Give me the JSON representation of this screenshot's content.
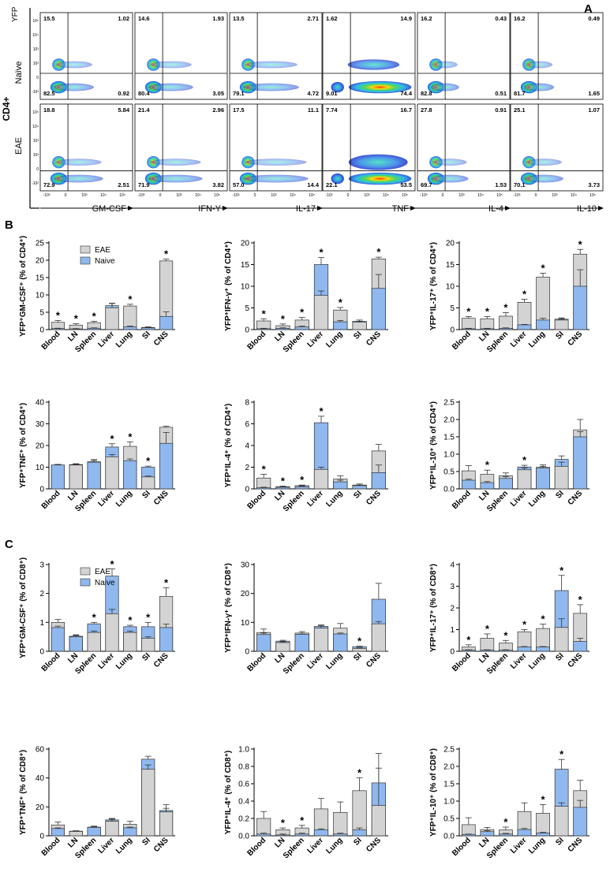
{
  "figure_labels": {
    "A": "A",
    "B": "B",
    "C": "C"
  },
  "panel_a": {
    "row_labels": {
      "cd4": "CD4+",
      "naive": "Naïve",
      "eae": "EAE",
      "yfp": "YFP"
    },
    "x_axes": [
      "GM-CSF",
      "IFN-Y",
      "IL-17",
      "TNF",
      "IL-4",
      "IL-10"
    ],
    "quadrants": {
      "naive": [
        [
          "15.5",
          "1.02",
          "82.5",
          "0.92"
        ],
        [
          "14.6",
          "1.93",
          "80.4",
          "3.05"
        ],
        [
          "13.5",
          "2.71",
          "79.1",
          "4.72"
        ],
        [
          "1.62",
          "14.9",
          "9.01",
          "74.4"
        ],
        [
          "16.2",
          "0.43",
          "82.8",
          "0.51"
        ],
        [
          "16.2",
          "0.49",
          "81.7",
          "1.65"
        ]
      ],
      "eae": [
        [
          "18.8",
          "5.84",
          "72.9",
          "2.51"
        ],
        [
          "21.4",
          "2.96",
          "71.9",
          "3.82"
        ],
        [
          "17.5",
          "11.1",
          "57.0",
          "14.4"
        ],
        [
          "7.74",
          "16.7",
          "22.1",
          "53.5"
        ],
        [
          "27.8",
          "0.91",
          "69.7",
          "1.53"
        ],
        [
          "25.1",
          "1.07",
          "70.1",
          "3.73"
        ]
      ]
    },
    "tick_labels": {
      "y": [
        "10⁵",
        "10⁴",
        "10³",
        "10²",
        "0",
        "-10²"
      ],
      "x": [
        "-10³",
        "0",
        "10³",
        "10⁴",
        "10⁵"
      ]
    }
  },
  "legend": {
    "eae": "EAE",
    "naive": "Naive"
  },
  "colors": {
    "eae": "#d3d3d3",
    "naive": "#8fb8ee",
    "axis": "#000000"
  },
  "chart_data": [
    {
      "type": "bar",
      "panel": "B",
      "ylabel": "YFP⁺GM-CSF⁺ (% of CD4⁺)",
      "ylim": [
        0,
        25
      ],
      "yticks": [
        "0",
        "5",
        "10",
        "15",
        "20",
        "25"
      ],
      "tick_values": [
        0,
        5,
        10,
        15,
        20,
        25
      ],
      "categories": [
        "Blood",
        "LN",
        "Spleen",
        "Liver",
        "Lung",
        "SI",
        "CNS"
      ],
      "series": [
        {
          "name": "EAE",
          "values": [
            2.1,
            1.3,
            2.0,
            6.3,
            6.8,
            0.6,
            19.8
          ],
          "errors": [
            0.5,
            0.4,
            0.4,
            1.2,
            0.5,
            0.2,
            0.5
          ]
        },
        {
          "name": "Naive",
          "values": [
            0.3,
            0.2,
            0.4,
            6.9,
            0.8,
            0.5,
            3.8
          ],
          "errors": [
            0.1,
            0.1,
            0.1,
            0.7,
            0.2,
            0.1,
            1.3
          ]
        }
      ],
      "significant": [
        1,
        1,
        1,
        0,
        1,
        0,
        1
      ]
    },
    {
      "type": "bar",
      "panel": "B",
      "ylabel": "YFP⁺IFN-γ⁺ (% of CD4⁺)",
      "ylim": [
        0,
        20
      ],
      "yticks": [
        "0",
        "5",
        "10",
        "15",
        "20"
      ],
      "tick_values": [
        0,
        5,
        10,
        15,
        20
      ],
      "categories": [
        "Blood",
        "LN",
        "Spleen",
        "Liver",
        "Lung",
        "SI",
        "CNS"
      ],
      "series": [
        {
          "name": "EAE",
          "values": [
            2.0,
            0.9,
            2.2,
            7.9,
            4.5,
            1.7,
            16.3
          ],
          "errors": [
            0.5,
            0.4,
            0.6,
            1.0,
            0.6,
            0.2,
            0.4
          ]
        },
        {
          "name": "Naive",
          "values": [
            0.2,
            0.3,
            0.6,
            15.0,
            1.8,
            1.9,
            9.5
          ],
          "errors": [
            0.1,
            0.1,
            0.2,
            1.6,
            0.3,
            0.3,
            3.2
          ]
        }
      ],
      "significant": [
        1,
        1,
        1,
        1,
        1,
        0,
        1
      ]
    },
    {
      "type": "bar",
      "panel": "B",
      "ylabel": "YFP⁺IL-17⁺ (% of CD4⁺)",
      "ylim": [
        0,
        20
      ],
      "yticks": [
        "0",
        "5",
        "10",
        "15",
        "20"
      ],
      "tick_values": [
        0,
        5,
        10,
        15,
        20
      ],
      "categories": [
        "Blood",
        "LN",
        "Spleen",
        "Liver",
        "Lung",
        "SI",
        "CNS"
      ],
      "series": [
        {
          "name": "EAE",
          "values": [
            2.6,
            2.5,
            3.1,
            6.3,
            12.1,
            2.2,
            17.4
          ],
          "errors": [
            0.4,
            0.5,
            0.8,
            0.7,
            0.9,
            0.3,
            1.1
          ]
        },
        {
          "name": "Naive",
          "values": [
            0.2,
            0.2,
            0.3,
            1.1,
            2.2,
            2.4,
            10.0
          ],
          "errors": [
            0.1,
            0.1,
            0.1,
            0.1,
            0.4,
            0.3,
            3.8
          ]
        }
      ],
      "significant": [
        1,
        1,
        1,
        1,
        1,
        0,
        1
      ]
    },
    {
      "type": "bar",
      "panel": "B",
      "ylabel": "YFP⁺TNF⁺ (% of CD4⁺)",
      "ylim": [
        0,
        40
      ],
      "yticks": [
        "0",
        "10",
        "20",
        "30",
        "40"
      ],
      "tick_values": [
        0,
        10,
        20,
        30,
        40
      ],
      "categories": [
        "Blood",
        "LN",
        "Spleen",
        "Liver",
        "Lung",
        "SI",
        "CNS"
      ],
      "series": [
        {
          "name": "EAE",
          "values": [
            11.0,
            11.0,
            12.5,
            14.8,
            19.6,
            5.5,
            28.4
          ],
          "errors": [
            0.3,
            0.4,
            0.6,
            1.0,
            2.0,
            0.4,
            0.5
          ]
        },
        {
          "name": "Naive",
          "values": [
            11.0,
            11.2,
            12.3,
            19.3,
            13.0,
            10.0,
            21.0
          ],
          "errors": [
            0.3,
            0.4,
            1.2,
            1.5,
            0.8,
            0.5,
            5.0
          ]
        }
      ],
      "significant": [
        0,
        0,
        0,
        1,
        1,
        1,
        0
      ]
    },
    {
      "type": "bar",
      "panel": "B",
      "ylabel": "YFP⁺IL-4⁺ (% of CD4⁺)",
      "ylim": [
        0,
        8
      ],
      "yticks": [
        "0",
        "2",
        "4",
        "6",
        "8"
      ],
      "tick_values": [
        0,
        2,
        4,
        6,
        8
      ],
      "categories": [
        "Blood",
        "LN",
        "Spleen",
        "Liver",
        "Lung",
        "SI",
        "CNS"
      ],
      "series": [
        {
          "name": "EAE",
          "values": [
            1.0,
            0.2,
            0.3,
            1.8,
            0.9,
            0.35,
            3.5
          ],
          "errors": [
            0.35,
            0.05,
            0.05,
            0.2,
            0.3,
            0.1,
            0.6
          ]
        },
        {
          "name": "Naive",
          "values": [
            0.1,
            0.15,
            0.2,
            6.1,
            0.65,
            0.3,
            1.5
          ],
          "errors": [
            0.05,
            0.05,
            0.05,
            0.6,
            0.15,
            0.05,
            0.7
          ]
        }
      ],
      "significant": [
        1,
        1,
        1,
        1,
        0,
        0,
        0
      ]
    },
    {
      "type": "bar",
      "panel": "B",
      "ylabel": "YFP⁺IL-10⁺ (% of CD4⁺)",
      "ylim": [
        0,
        2.5
      ],
      "yticks": [
        "0.0",
        "0.5",
        "1.0",
        "1.5",
        "2.0",
        "2.5"
      ],
      "tick_values": [
        0,
        0.5,
        1,
        1.5,
        2,
        2.5
      ],
      "categories": [
        "Blood",
        "LN",
        "Spleen",
        "Liver",
        "Lung",
        "SI",
        "CNS"
      ],
      "series": [
        {
          "name": "EAE",
          "values": [
            0.52,
            0.42,
            0.38,
            0.55,
            0.62,
            0.65,
            1.7
          ],
          "errors": [
            0.15,
            0.12,
            0.08,
            0.05,
            0.07,
            0.12,
            0.3
          ]
        },
        {
          "name": "Naive",
          "values": [
            0.25,
            0.18,
            0.3,
            0.63,
            0.6,
            0.85,
            1.5
          ],
          "errors": [
            0.03,
            0.03,
            0.05,
            0.05,
            0.05,
            0.1,
            0.15
          ]
        }
      ],
      "significant": [
        0,
        1,
        0,
        1,
        0,
        0,
        0
      ]
    },
    {
      "type": "bar",
      "panel": "C",
      "ylabel": "YFP⁺GM-CSF⁺ (% of CD8⁺)",
      "ylim": [
        0,
        3
      ],
      "yticks": [
        "0",
        "1",
        "2",
        "3"
      ],
      "tick_values": [
        0,
        1,
        2,
        3
      ],
      "categories": [
        "Blood",
        "LN",
        "Spleen",
        "Liver",
        "Lung",
        "SI",
        "CNS"
      ],
      "series": [
        {
          "name": "EAE",
          "values": [
            1.0,
            0.52,
            0.65,
            1.3,
            0.65,
            0.45,
            1.9
          ],
          "errors": [
            0.1,
            0.05,
            0.05,
            0.15,
            0.05,
            0.05,
            0.3
          ]
        },
        {
          "name": "Naive",
          "values": [
            0.82,
            0.5,
            0.95,
            2.6,
            0.85,
            0.85,
            0.82
          ],
          "errors": [
            0.05,
            0.05,
            0.05,
            0.25,
            0.05,
            0.15,
            0.12
          ]
        }
      ],
      "significant": [
        0,
        0,
        1,
        1,
        1,
        1,
        1
      ]
    },
    {
      "type": "bar",
      "panel": "C",
      "ylabel": "YFP⁺IFN-γ⁺ (% of CD8⁺)",
      "ylim": [
        0,
        30
      ],
      "yticks": [
        "0",
        "10",
        "20",
        "30"
      ],
      "tick_values": [
        0,
        10,
        20,
        30
      ],
      "categories": [
        "Blood",
        "LN",
        "Spleen",
        "Liver",
        "Lung",
        "SI",
        "CNS"
      ],
      "series": [
        {
          "name": "EAE",
          "values": [
            6.5,
            3.0,
            6.3,
            8.0,
            8.0,
            1.0,
            9.5
          ],
          "errors": [
            1.2,
            0.3,
            0.5,
            0.8,
            1.6,
            0.2,
            0.8
          ]
        },
        {
          "name": "Naive",
          "values": [
            5.8,
            3.5,
            5.9,
            8.6,
            6.0,
            1.6,
            18.0
          ],
          "errors": [
            0.5,
            0.3,
            0.4,
            0.5,
            0.3,
            0.2,
            5.5
          ]
        }
      ],
      "significant": [
        0,
        0,
        0,
        0,
        0,
        1,
        0
      ]
    },
    {
      "type": "bar",
      "panel": "C",
      "ylabel": "YFP⁺IL-17⁺ (% of CD8⁺)",
      "ylim": [
        0,
        4
      ],
      "yticks": [
        "0",
        "1",
        "2",
        "3",
        "4"
      ],
      "tick_values": [
        0,
        1,
        2,
        3,
        4
      ],
      "categories": [
        "Blood",
        "LN",
        "Spleen",
        "Liver",
        "Lung",
        "SI",
        "CNS"
      ],
      "series": [
        {
          "name": "EAE",
          "values": [
            0.2,
            0.6,
            0.38,
            0.9,
            1.05,
            1.1,
            1.75
          ],
          "errors": [
            0.1,
            0.2,
            0.12,
            0.1,
            0.2,
            0.4,
            0.4
          ]
        },
        {
          "name": "Naive",
          "values": [
            0.05,
            0.05,
            0.05,
            0.2,
            0.2,
            2.8,
            0.45
          ],
          "errors": [
            0.02,
            0.02,
            0.02,
            0.02,
            0.02,
            0.7,
            0.15
          ]
        }
      ],
      "significant": [
        1,
        1,
        1,
        1,
        1,
        1,
        1
      ]
    },
    {
      "type": "bar",
      "panel": "C",
      "ylabel": "YFP⁺TNF⁺ (% of CD8⁺)",
      "ylim": [
        0,
        60
      ],
      "yticks": [
        "0",
        "20",
        "40",
        "60"
      ],
      "tick_values": [
        0,
        20,
        40,
        60
      ],
      "categories": [
        "Blood",
        "LN",
        "Spleen",
        "Liver",
        "Lung",
        "SI",
        "CNS"
      ],
      "series": [
        {
          "name": "EAE",
          "values": [
            7.5,
            3.0,
            6.0,
            10.0,
            8.0,
            46.0,
            16.5
          ],
          "errors": [
            2.0,
            0.3,
            0.7,
            1.5,
            2.0,
            3.0,
            5.0
          ]
        },
        {
          "name": "Naive",
          "values": [
            5.0,
            3.2,
            5.8,
            11.0,
            5.5,
            53.0,
            17.5
          ],
          "errors": [
            0.5,
            0.3,
            0.5,
            1.0,
            0.5,
            2.0,
            1.5
          ]
        }
      ],
      "significant": [
        0,
        0,
        0,
        0,
        0,
        0,
        0
      ]
    },
    {
      "type": "bar",
      "panel": "C",
      "ylabel": "YFP⁺IL-4⁺ (% of CD8⁺)",
      "ylim": [
        0,
        1.0
      ],
      "yticks": [
        "0.0",
        "0.2",
        "0.4",
        "0.6",
        "0.8",
        "1.0"
      ],
      "tick_values": [
        0,
        0.2,
        0.4,
        0.6,
        0.8,
        1
      ],
      "categories": [
        "Blood",
        "LN",
        "Spleen",
        "Liver",
        "Lung",
        "SI",
        "CNS"
      ],
      "series": [
        {
          "name": "EAE",
          "values": [
            0.2,
            0.07,
            0.09,
            0.31,
            0.27,
            0.52,
            0.35
          ],
          "errors": [
            0.08,
            0.02,
            0.03,
            0.12,
            0.12,
            0.15,
            0.6
          ]
        },
        {
          "name": "Naive",
          "values": [
            0.02,
            0.01,
            0.02,
            0.07,
            0.02,
            0.07,
            0.61
          ],
          "errors": [
            0.01,
            0.01,
            0.01,
            0.01,
            0.01,
            0.02,
            0.17
          ]
        }
      ],
      "significant": [
        0,
        1,
        1,
        0,
        0,
        1,
        0
      ]
    },
    {
      "type": "bar",
      "panel": "C",
      "ylabel": "YFP⁺IL-10⁺ (% of CD8⁺)",
      "ylim": [
        0,
        2.5
      ],
      "yticks": [
        "0.0",
        "0.5",
        "1.0",
        "1.5",
        "2.0",
        "2.5"
      ],
      "tick_values": [
        0,
        0.5,
        1,
        1.5,
        2,
        2.5
      ],
      "categories": [
        "Blood",
        "LN",
        "Spleen",
        "Liver",
        "Lung",
        "SI",
        "CNS"
      ],
      "series": [
        {
          "name": "EAE",
          "values": [
            0.32,
            0.18,
            0.17,
            0.7,
            0.65,
            0.85,
            1.3
          ],
          "errors": [
            0.2,
            0.06,
            0.08,
            0.25,
            0.25,
            0.1,
            0.3
          ]
        },
        {
          "name": "Naive",
          "values": [
            0.04,
            0.12,
            0.05,
            0.18,
            0.08,
            1.92,
            0.82
          ],
          "errors": [
            0.01,
            0.03,
            0.02,
            0.03,
            0.02,
            0.28,
            0.2
          ]
        }
      ],
      "significant": [
        0,
        0,
        1,
        0,
        1,
        1,
        0
      ]
    }
  ]
}
